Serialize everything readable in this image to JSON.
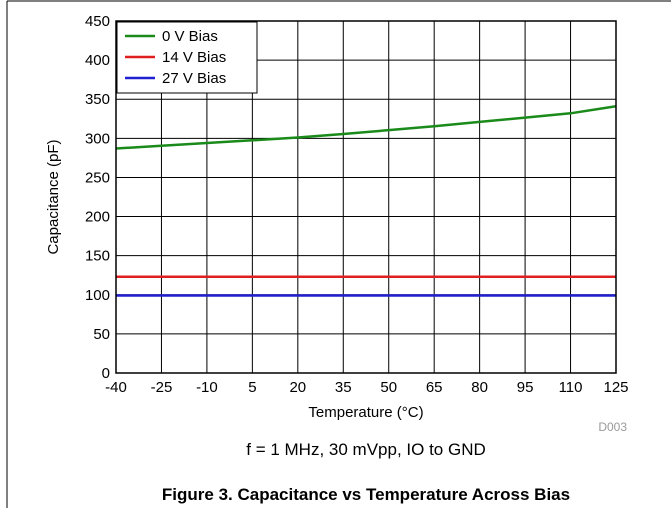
{
  "chart_data": {
    "type": "line",
    "title": "",
    "xlabel": "Temperature (°C)",
    "ylabel": "Capacitance (pF)",
    "xlim": [
      -40,
      125
    ],
    "ylim": [
      0,
      450
    ],
    "x_ticks": [
      "-40",
      "-25",
      "-10",
      "5",
      "20",
      "35",
      "50",
      "65",
      "80",
      "95",
      "110",
      "125"
    ],
    "y_ticks": [
      "0",
      "50",
      "100",
      "150",
      "200",
      "250",
      "300",
      "350",
      "400",
      "450"
    ],
    "grid": true,
    "legend_position": "top-left",
    "series": [
      {
        "name": "0 V Bias",
        "color": "#1a8a1a",
        "x": [
          -40,
          -25,
          -10,
          5,
          20,
          35,
          50,
          65,
          80,
          95,
          110,
          125
        ],
        "y": [
          287,
          290.5,
          294,
          297.5,
          301,
          305.5,
          310.5,
          315.5,
          321,
          326.5,
          332,
          341
        ]
      },
      {
        "name": "14 V Bias",
        "color": "#e02020",
        "x": [
          -40,
          125
        ],
        "y": [
          123,
          123
        ]
      },
      {
        "name": "27 V Bias",
        "color": "#2020d0",
        "x": [
          -40,
          125
        ],
        "y": [
          99,
          99
        ]
      }
    ],
    "annotations": {
      "condition": "f = 1 MHz, 30 mVpp, IO to GND",
      "figure_code": "D003"
    }
  },
  "caption": "Figure 3. Capacitance vs Temperature Across Bias"
}
